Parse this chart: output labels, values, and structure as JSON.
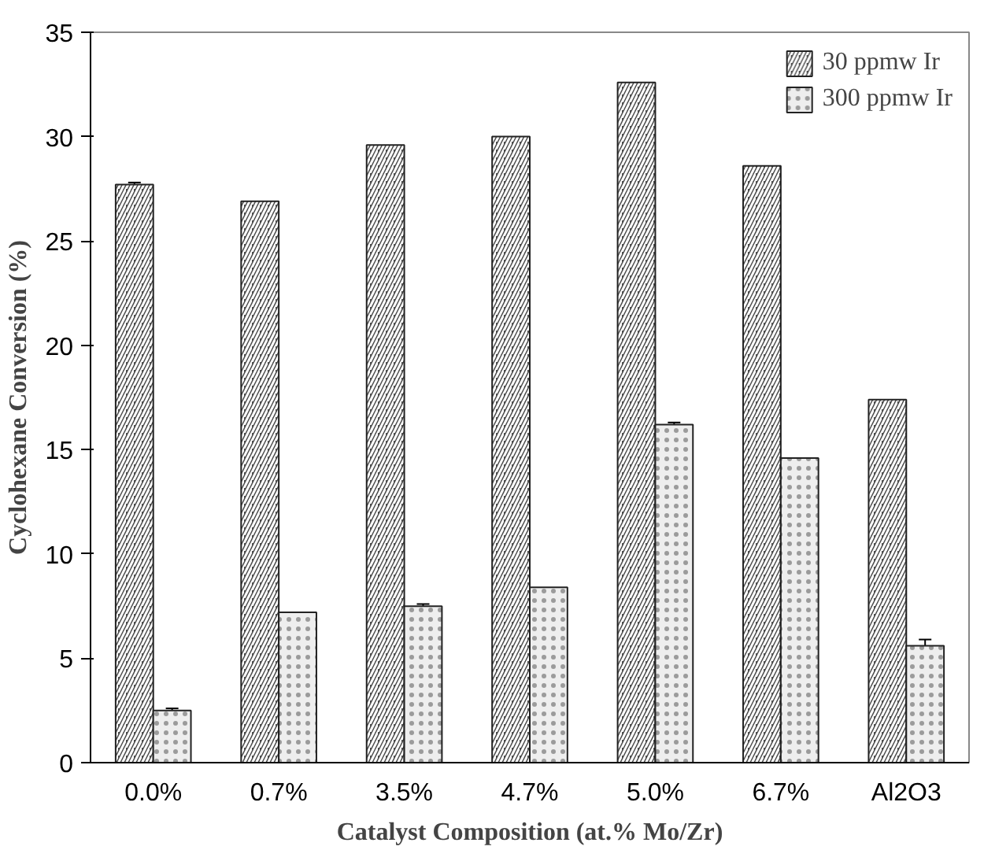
{
  "chart_data": {
    "type": "bar",
    "xlabel": "Catalyst Composition (at.% Mo/Zr)",
    "ylabel": "Cyclohexane Conversion (%)",
    "categories": [
      "0.0%",
      "0.7%",
      "3.5%",
      "4.7%",
      "5.0%",
      "6.7%",
      "Al2O3"
    ],
    "series": [
      {
        "name": "30 ppmw Ir",
        "color": "#4d4d4d",
        "values": [
          27.7,
          26.9,
          29.6,
          30.0,
          32.6,
          28.6,
          17.4
        ],
        "errors": [
          0.1,
          null,
          null,
          null,
          null,
          null,
          null
        ]
      },
      {
        "name": "300 ppmw Ir",
        "color": "#eeeeee",
        "values": [
          2.5,
          7.2,
          7.5,
          8.4,
          16.2,
          14.6,
          5.6
        ],
        "errors": [
          0.1,
          null,
          0.1,
          null,
          0.1,
          null,
          0.3
        ]
      }
    ],
    "ylim": [
      0,
      35
    ],
    "yticks": [
      0,
      5,
      10,
      15,
      20,
      25,
      30,
      35
    ],
    "grid": false,
    "legend": "top right"
  }
}
